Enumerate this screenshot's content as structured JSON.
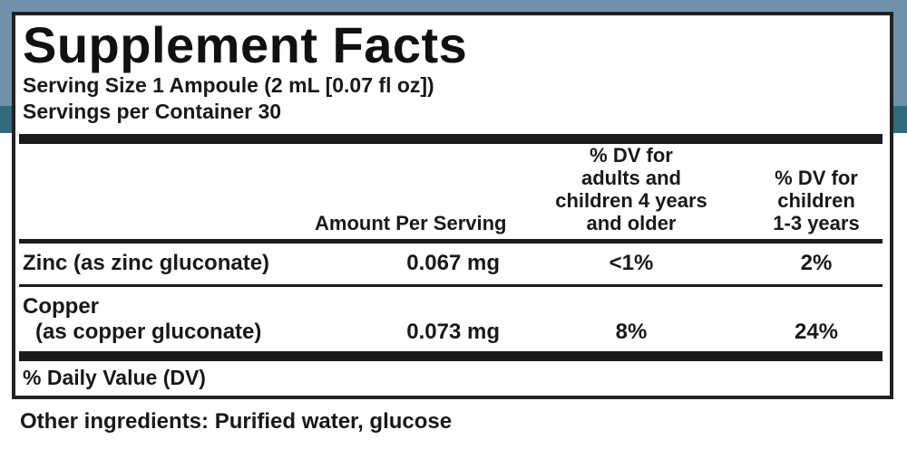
{
  "background": {
    "top_band_color": "#6e92ad",
    "accent_band_color": "#336a80",
    "page_color": "#ffffff"
  },
  "label": {
    "title": "Supplement Facts",
    "serving_size": "Serving Size 1 Ampoule (2 mL [0.07 fl oz])",
    "servings_per_container": "Servings per Container 30",
    "table": {
      "columns": {
        "amount": "Amount Per Serving",
        "dv_adults_lines": [
          "% DV for",
          "adults and",
          "children 4 years",
          "and older"
        ],
        "dv_children_lines": [
          "% DV for",
          "children",
          "1-3 years"
        ]
      },
      "rows": [
        {
          "name": "Zinc (as zinc gluconate)",
          "amount": "0.067 mg",
          "dv_adults": "<1%",
          "dv_children": "2%"
        },
        {
          "name": "Copper",
          "name_line2": "(as copper gluconate)",
          "amount": "0.073 mg",
          "dv_adults": "8%",
          "dv_children": "24%"
        }
      ],
      "footnote": "% Daily Value (DV)"
    },
    "other_ingredients": "Other ingredients: Purified water, glucose"
  }
}
